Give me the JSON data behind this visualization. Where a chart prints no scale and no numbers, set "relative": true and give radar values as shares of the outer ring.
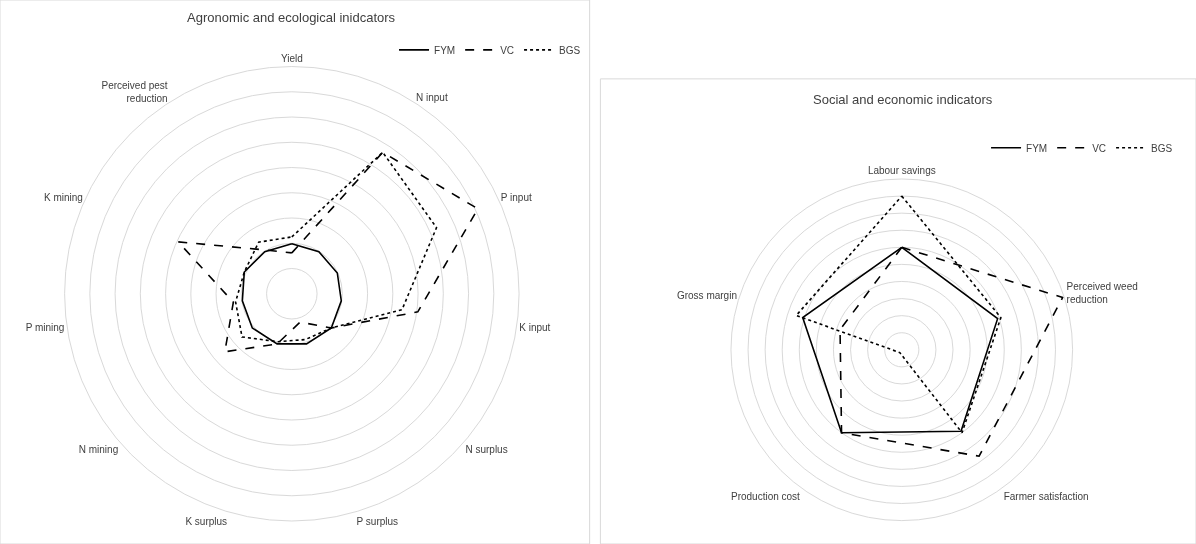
{
  "chart_data": [
    {
      "type": "radar",
      "title": "Agronomic and ecological inidcators",
      "relative": true,
      "grid": true,
      "legend": "top right",
      "categories": [
        "Yield",
        "N input",
        "P input",
        "K input",
        "N surplus",
        "P surplus",
        "K surplus",
        "N mining",
        "P mining",
        "K mining",
        "Perceived pest reduction"
      ],
      "series": [
        {
          "name": "FYM",
          "color": "#000000",
          "line_style": "solid",
          "values": [
            0.22,
            0.22,
            0.22,
            0.22,
            0.23,
            0.23,
            0.23,
            0.23,
            0.22,
            0.23,
            0.22
          ]
        },
        {
          "name": "VC",
          "color": "#000000",
          "line_style": "dashed",
          "values": [
            0.18,
            0.74,
            0.9,
            0.56,
            0.23,
            0.13,
            0.23,
            0.39,
            0.26,
            0.55,
            0.23
          ]
        },
        {
          "name": "BGS",
          "color": "#000000",
          "line_style": "dotted",
          "values": [
            0.25,
            0.74,
            0.7,
            0.49,
            0.23,
            0.21,
            0.22,
            0.29,
            0.25,
            0.23,
            0.27
          ]
        }
      ]
    },
    {
      "type": "radar",
      "title": "Social and economic indicators",
      "relative": true,
      "grid": true,
      "legend": "top right",
      "categories": [
        "Labour savings",
        "Perceived weed reduction",
        "Farmer satisfaction",
        "Production cost",
        "Gross margin"
      ],
      "series": [
        {
          "name": "FYM",
          "color": "#000000",
          "line_style": "solid",
          "values": [
            0.6,
            0.59,
            0.59,
            0.6,
            0.61
          ]
        },
        {
          "name": "VC",
          "color": "#000000",
          "line_style": "dashed",
          "values": [
            0.6,
            0.99,
            0.77,
            0.6,
            0.38
          ]
        },
        {
          "name": "BGS",
          "color": "#000000",
          "line_style": "dotted",
          "values": [
            0.9,
            0.61,
            0.6,
            0.02,
            0.65
          ]
        }
      ]
    }
  ]
}
